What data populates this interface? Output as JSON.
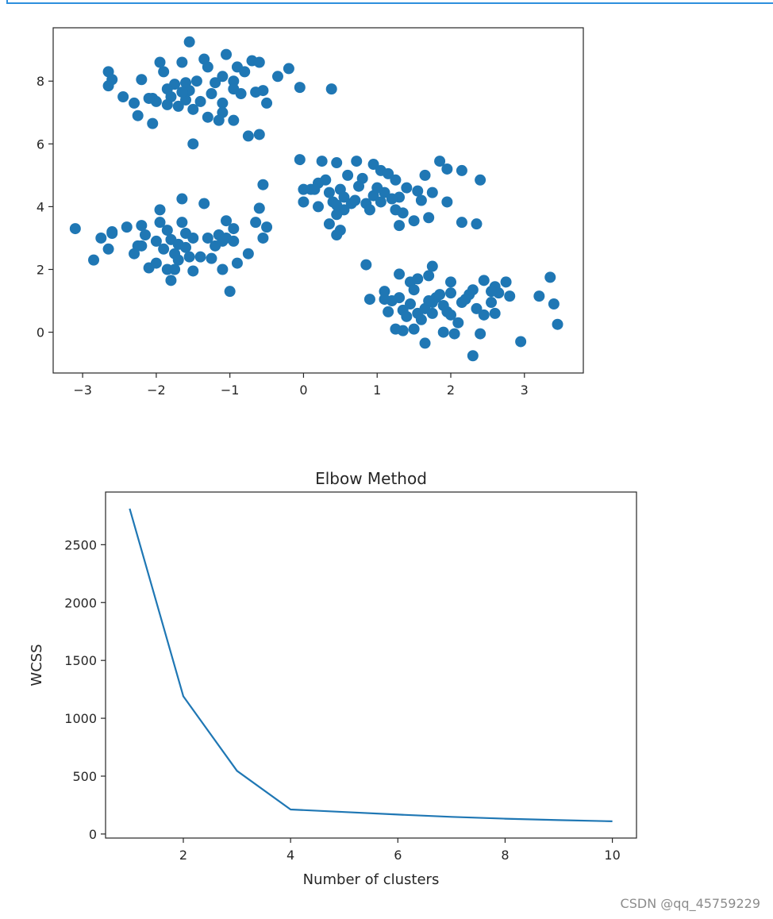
{
  "watermark": "CSDN @qq_45759229",
  "chart_data": [
    {
      "type": "scatter",
      "title": "",
      "xlabel": "",
      "ylabel": "",
      "xlim": [
        -3.4,
        3.8
      ],
      "ylim": [
        -1.3,
        9.7
      ],
      "xticks": [
        -3,
        -2,
        -1,
        0,
        1,
        2,
        3
      ],
      "xtick_labels": [
        "−3",
        "−2",
        "−1",
        "0",
        "1",
        "2",
        "3"
      ],
      "yticks": [
        0,
        2,
        4,
        6,
        8
      ],
      "ytick_labels": [
        "0",
        "2",
        "4",
        "6",
        "8"
      ],
      "color": "#1f77b4",
      "grid": false,
      "points": [
        [
          -1.55,
          9.25
        ],
        [
          -1.05,
          8.85
        ],
        [
          -1.95,
          8.6
        ],
        [
          -1.65,
          8.6
        ],
        [
          -1.35,
          8.7
        ],
        [
          -0.7,
          8.65
        ],
        [
          -0.6,
          8.6
        ],
        [
          -0.9,
          8.45
        ],
        [
          -2.65,
          8.3
        ],
        [
          -1.9,
          8.3
        ],
        [
          -1.3,
          8.45
        ],
        [
          -0.8,
          8.3
        ],
        [
          -0.2,
          8.4
        ],
        [
          -2.6,
          8.05
        ],
        [
          -2.2,
          8.05
        ],
        [
          -1.75,
          7.9
        ],
        [
          -1.45,
          8.0
        ],
        [
          -1.1,
          8.15
        ],
        [
          -0.95,
          8.0
        ],
        [
          -0.35,
          8.15
        ],
        [
          -2.65,
          7.85
        ],
        [
          -1.85,
          7.75
        ],
        [
          -1.55,
          7.7
        ],
        [
          -1.25,
          7.6
        ],
        [
          -0.55,
          7.7
        ],
        [
          -0.05,
          7.8
        ],
        [
          0.38,
          7.75
        ],
        [
          -2.45,
          7.5
        ],
        [
          -2.05,
          7.45
        ],
        [
          -1.8,
          7.5
        ],
        [
          -1.6,
          7.4
        ],
        [
          -0.85,
          7.6
        ],
        [
          -0.65,
          7.65
        ],
        [
          -2.3,
          7.3
        ],
        [
          -2.0,
          7.35
        ],
        [
          -1.7,
          7.2
        ],
        [
          -1.4,
          7.35
        ],
        [
          -1.1,
          7.3
        ],
        [
          -0.5,
          7.3
        ],
        [
          -2.25,
          6.9
        ],
        [
          -1.3,
          6.85
        ],
        [
          -1.1,
          7.0
        ],
        [
          -0.95,
          6.75
        ],
        [
          -2.05,
          6.65
        ],
        [
          -1.15,
          6.75
        ],
        [
          -1.5,
          6.0
        ],
        [
          -0.75,
          6.25
        ],
        [
          -0.6,
          6.3
        ],
        [
          -1.6,
          7.95
        ],
        [
          -1.2,
          7.95
        ],
        [
          -1.85,
          7.25
        ],
        [
          -1.5,
          7.1
        ],
        [
          -2.1,
          7.45
        ],
        [
          -0.95,
          7.75
        ],
        [
          -1.65,
          7.65
        ],
        [
          -0.05,
          5.5
        ],
        [
          0.25,
          5.45
        ],
        [
          0.45,
          5.4
        ],
        [
          0.72,
          5.45
        ],
        [
          0.95,
          5.35
        ],
        [
          1.05,
          5.15
        ],
        [
          1.15,
          5.05
        ],
        [
          1.85,
          5.45
        ],
        [
          1.95,
          5.2
        ],
        [
          2.15,
          5.15
        ],
        [
          1.65,
          5.0
        ],
        [
          0.6,
          5.0
        ],
        [
          0.8,
          4.9
        ],
        [
          1.25,
          4.85
        ],
        [
          2.4,
          4.85
        ],
        [
          0.3,
          4.85
        ],
        [
          0.2,
          4.75
        ],
        [
          0.0,
          4.55
        ],
        [
          0.1,
          4.55
        ],
        [
          0.5,
          4.55
        ],
        [
          0.75,
          4.65
        ],
        [
          1.4,
          4.6
        ],
        [
          1.3,
          4.3
        ],
        [
          1.55,
          4.5
        ],
        [
          1.75,
          4.45
        ],
        [
          1.6,
          4.2
        ],
        [
          1.95,
          4.15
        ],
        [
          0.95,
          4.35
        ],
        [
          1.1,
          4.45
        ],
        [
          1.2,
          4.25
        ],
        [
          0.55,
          4.3
        ],
        [
          0.35,
          4.45
        ],
        [
          0.4,
          4.15
        ],
        [
          0.65,
          4.1
        ],
        [
          0.85,
          4.1
        ],
        [
          1.05,
          4.15
        ],
        [
          0.0,
          4.15
        ],
        [
          0.2,
          4.0
        ],
        [
          0.55,
          3.9
        ],
        [
          0.45,
          3.75
        ],
        [
          0.9,
          3.9
        ],
        [
          1.25,
          3.9
        ],
        [
          1.35,
          3.8
        ],
        [
          1.7,
          3.65
        ],
        [
          1.5,
          3.55
        ],
        [
          1.3,
          3.4
        ],
        [
          0.35,
          3.45
        ],
        [
          0.5,
          3.25
        ],
        [
          0.45,
          3.1
        ],
        [
          2.15,
          3.5
        ],
        [
          2.35,
          3.45
        ],
        [
          0.7,
          4.2
        ],
        [
          1.0,
          4.6
        ],
        [
          0.15,
          4.55
        ],
        [
          0.45,
          4.05
        ],
        [
          -3.1,
          3.3
        ],
        [
          -2.85,
          2.3
        ],
        [
          -2.75,
          3.0
        ],
        [
          -2.6,
          3.2
        ],
        [
          -2.6,
          3.15
        ],
        [
          -2.65,
          2.65
        ],
        [
          -2.4,
          3.35
        ],
        [
          -2.2,
          3.4
        ],
        [
          -2.2,
          2.75
        ],
        [
          -2.15,
          3.1
        ],
        [
          -2.1,
          2.05
        ],
        [
          -1.95,
          3.9
        ],
        [
          -1.95,
          3.5
        ],
        [
          -1.9,
          2.65
        ],
        [
          -1.85,
          3.25
        ],
        [
          -1.8,
          2.95
        ],
        [
          -1.75,
          2.5
        ],
        [
          -1.7,
          2.8
        ],
        [
          -1.7,
          2.3
        ],
        [
          -1.65,
          4.25
        ],
        [
          -1.65,
          3.5
        ],
        [
          -1.6,
          3.15
        ],
        [
          -1.6,
          2.7
        ],
        [
          -1.55,
          2.4
        ],
        [
          -1.5,
          3.0
        ],
        [
          -1.5,
          1.95
        ],
        [
          -1.35,
          4.1
        ],
        [
          -1.3,
          3.0
        ],
        [
          -1.25,
          2.35
        ],
        [
          -1.2,
          2.75
        ],
        [
          -1.15,
          3.1
        ],
        [
          -1.1,
          2.9
        ],
        [
          -1.05,
          3.55
        ],
        [
          -1.05,
          3.0
        ],
        [
          -0.95,
          2.9
        ],
        [
          -0.95,
          3.3
        ],
        [
          -0.9,
          2.2
        ],
        [
          -0.75,
          2.5
        ],
        [
          -0.65,
          3.5
        ],
        [
          -0.6,
          3.95
        ],
        [
          -0.55,
          4.7
        ],
        [
          -0.55,
          3.0
        ],
        [
          -0.5,
          3.35
        ],
        [
          -1.0,
          1.3
        ],
        [
          -1.8,
          1.65
        ],
        [
          -1.75,
          2.0
        ],
        [
          -2.0,
          2.2
        ],
        [
          -2.3,
          2.5
        ],
        [
          -1.4,
          2.4
        ],
        [
          -1.1,
          2.0
        ],
        [
          -1.85,
          2.0
        ],
        [
          -2.0,
          2.9
        ],
        [
          -2.25,
          2.75
        ],
        [
          0.85,
          2.15
        ],
        [
          1.1,
          1.3
        ],
        [
          1.3,
          1.85
        ],
        [
          1.45,
          1.6
        ],
        [
          1.55,
          1.7
        ],
        [
          1.7,
          1.8
        ],
        [
          1.75,
          2.1
        ],
        [
          2.0,
          1.6
        ],
        [
          2.3,
          1.35
        ],
        [
          2.45,
          1.65
        ],
        [
          2.6,
          1.45
        ],
        [
          2.75,
          1.6
        ],
        [
          2.8,
          1.15
        ],
        [
          3.35,
          1.75
        ],
        [
          3.2,
          1.15
        ],
        [
          3.4,
          0.9
        ],
        [
          3.45,
          0.25
        ],
        [
          2.95,
          -0.3
        ],
        [
          2.3,
          -0.75
        ],
        [
          2.05,
          -0.05
        ],
        [
          1.9,
          0.0
        ],
        [
          1.65,
          -0.35
        ],
        [
          1.5,
          0.1
        ],
        [
          1.35,
          0.05
        ],
        [
          1.25,
          0.1
        ],
        [
          1.15,
          0.65
        ],
        [
          0.9,
          1.05
        ],
        [
          1.2,
          1.0
        ],
        [
          1.35,
          0.7
        ],
        [
          1.45,
          0.9
        ],
        [
          1.55,
          0.6
        ],
        [
          1.65,
          0.75
        ],
        [
          1.75,
          0.95
        ],
        [
          1.8,
          1.1
        ],
        [
          1.9,
          0.85
        ],
        [
          2.0,
          0.55
        ],
        [
          2.1,
          0.3
        ],
        [
          2.15,
          0.95
        ],
        [
          2.25,
          1.2
        ],
        [
          2.35,
          0.75
        ],
        [
          2.45,
          0.55
        ],
        [
          2.55,
          0.95
        ],
        [
          2.6,
          0.6
        ],
        [
          2.65,
          1.25
        ],
        [
          2.4,
          -0.05
        ],
        [
          1.85,
          1.2
        ],
        [
          1.7,
          1.0
        ],
        [
          1.6,
          0.4
        ],
        [
          1.4,
          0.5
        ],
        [
          1.3,
          1.1
        ],
        [
          2.0,
          1.25
        ],
        [
          2.2,
          1.05
        ],
        [
          1.95,
          0.65
        ],
        [
          1.1,
          1.05
        ],
        [
          1.5,
          1.35
        ],
        [
          2.55,
          1.3
        ],
        [
          1.75,
          0.6
        ]
      ]
    },
    {
      "type": "line",
      "title": "Elbow Method",
      "xlabel": "Number of clusters",
      "ylabel": "WCSS",
      "x": [
        1,
        2,
        3,
        4,
        5,
        6,
        7,
        8,
        9,
        10
      ],
      "series": [
        {
          "values": [
            2812,
            1190,
            546,
            212,
            190,
            168,
            148,
            132,
            120,
            110
          ]
        }
      ],
      "xlim": [
        0.55,
        10.45
      ],
      "ylim": [
        -35,
        2955
      ],
      "xticks": [
        2,
        4,
        6,
        8,
        10
      ],
      "xtick_labels": [
        "2",
        "4",
        "6",
        "8",
        "10"
      ],
      "yticks": [
        0,
        500,
        1000,
        1500,
        2000,
        2500
      ],
      "ytick_labels": [
        "0",
        "500",
        "1000",
        "1500",
        "2000",
        "2500"
      ],
      "color": "#1f77b4",
      "grid": false
    }
  ]
}
